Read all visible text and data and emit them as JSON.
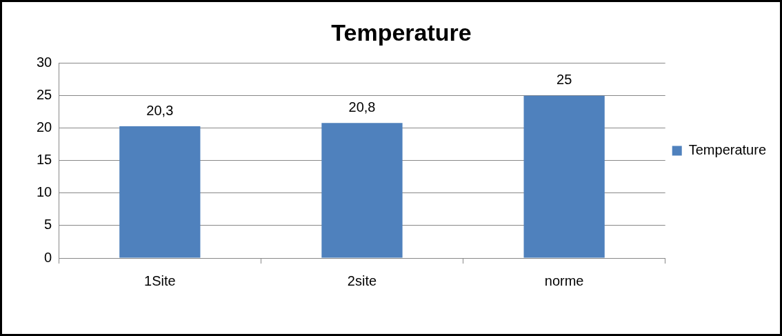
{
  "chart_data": {
    "type": "bar",
    "title": "Temperature",
    "categories": [
      "1Site",
      "2site",
      "norme"
    ],
    "series": [
      {
        "name": "Temperature",
        "color": "#4f81bd",
        "values": [
          20.3,
          20.8,
          25
        ],
        "value_labels": [
          "20,3",
          "20,8",
          "25"
        ]
      }
    ],
    "ylim": [
      0,
      30
    ],
    "yticks": [
      0,
      5,
      10,
      15,
      20,
      25,
      30
    ],
    "grid": "y",
    "legend": "right"
  }
}
